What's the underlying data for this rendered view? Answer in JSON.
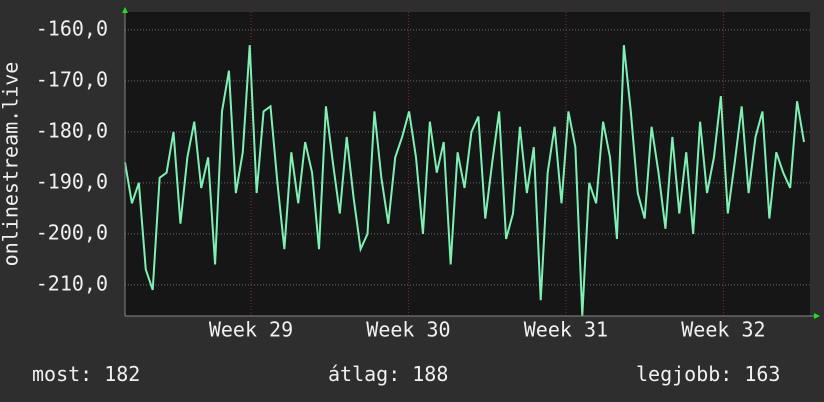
{
  "chart_data": {
    "type": "line",
    "y_label": "onlinestream.live",
    "x": [
      28.2,
      28.244,
      28.288,
      28.332,
      28.376,
      28.42,
      28.464,
      28.508,
      28.552,
      28.596,
      28.64,
      28.684,
      28.728,
      28.772,
      28.816,
      28.86,
      28.904,
      28.948,
      28.992,
      29.036,
      29.08,
      29.124,
      29.168,
      29.212,
      29.256,
      29.3,
      29.344,
      29.388,
      29.432,
      29.476,
      29.52,
      29.564,
      29.608,
      29.652,
      29.696,
      29.74,
      29.784,
      29.828,
      29.872,
      29.916,
      29.96,
      30.004,
      30.048,
      30.092,
      30.136,
      30.18,
      30.224,
      30.268,
      30.312,
      30.356,
      30.4,
      30.444,
      30.488,
      30.532,
      30.576,
      30.62,
      30.664,
      30.708,
      30.752,
      30.796,
      30.84,
      30.884,
      30.928,
      30.972,
      31.016,
      31.06,
      31.104,
      31.148,
      31.192,
      31.236,
      31.28,
      31.324,
      31.368,
      31.412,
      31.456,
      31.5,
      31.544,
      31.588,
      31.632,
      31.676,
      31.72,
      31.764,
      31.808,
      31.852,
      31.896,
      31.94,
      31.984,
      32.028,
      32.072,
      32.116,
      32.16,
      32.204,
      32.248,
      32.292,
      32.336,
      32.38,
      32.424,
      32.468,
      32.512
    ],
    "series": [
      {
        "color": "#7ff0b4",
        "values": [
          -186,
          -194,
          -190,
          -207,
          -211,
          -189,
          -188,
          -180,
          -198,
          -185,
          -178,
          -191,
          -185,
          -206,
          -176,
          -168,
          -192,
          -184,
          -163,
          -192,
          -176,
          -175,
          -190,
          -203,
          -184,
          -194,
          -182,
          -188,
          -203,
          -175,
          -186,
          -196,
          -181,
          -193,
          -203,
          -200,
          -176,
          -189,
          -198,
          -185,
          -181,
          -176,
          -185,
          -200,
          -178,
          -188,
          -182,
          -206,
          -184,
          -191,
          -180,
          -177,
          -197,
          -186,
          -176,
          -201,
          -196,
          -179,
          -192,
          -183,
          -213,
          -188,
          -179,
          -194,
          -176,
          -183,
          -216,
          -190,
          -194,
          -178,
          -185,
          -201,
          -163,
          -176,
          -192,
          -197,
          -179,
          -188,
          -199,
          -181,
          -196,
          -184,
          -200,
          -178,
          -192,
          -185,
          -173,
          -196,
          -186,
          -175,
          -192,
          -181,
          -176,
          -197,
          -184,
          -188,
          -191,
          -174,
          -182
        ]
      }
    ],
    "xlim": [
      28.2,
      32.55
    ],
    "xticks": [
      {
        "value": 29,
        "label": "Week 29"
      },
      {
        "value": 30,
        "label": "Week 30"
      },
      {
        "value": 31,
        "label": "Week 31"
      },
      {
        "value": 32,
        "label": "Week 32"
      }
    ],
    "ylim": [
      -216.1,
      -156.5
    ],
    "yticks": [
      {
        "value": -210,
        "label": "-210,0"
      },
      {
        "value": -200,
        "label": "-200,0"
      },
      {
        "value": -190,
        "label": "-190,0"
      },
      {
        "value": -180,
        "label": "-180,0"
      },
      {
        "value": -170,
        "label": "-170,0"
      },
      {
        "value": -160,
        "label": "-160,0"
      }
    ],
    "grid": true,
    "stats": [
      {
        "label": "most:",
        "value": 182
      },
      {
        "label": "átlag:",
        "value": 188
      },
      {
        "label": "legjobb:",
        "value": 163
      }
    ]
  }
}
